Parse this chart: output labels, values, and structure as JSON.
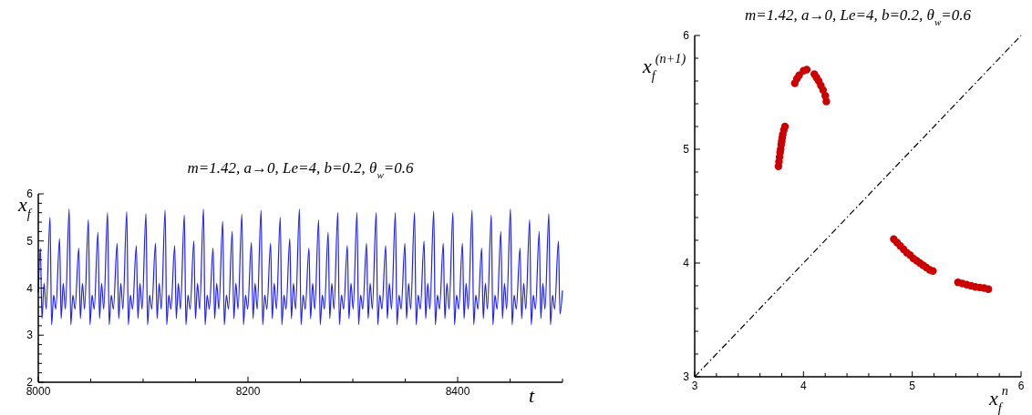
{
  "chart_data": [
    {
      "type": "line",
      "title": "m=1.42, a→0, Le=4, b=0.2, θ$_{w}$=0.6",
      "xlabel": "t",
      "ylabel": "x$_{f}$",
      "xlim": [
        8000,
        8500
      ],
      "ylim": [
        2,
        6
      ],
      "xticks": [
        8000,
        {
          "value": 8050,
          "label": null
        },
        {
          "value": 8100,
          "label": null
        },
        {
          "value": 8150,
          "label": null
        },
        8200,
        {
          "value": 8250,
          "label": null
        },
        {
          "value": 8300,
          "label": null
        },
        {
          "value": 8350,
          "label": null
        },
        8400,
        {
          "value": 8450,
          "label": null
        },
        {
          "value": 8500,
          "label": null
        }
      ],
      "yticks": [
        2,
        {
          "value": 2.2,
          "label": null
        },
        {
          "value": 2.4,
          "label": null
        },
        {
          "value": 2.6,
          "label": null
        },
        {
          "value": 2.8,
          "label": null
        },
        3,
        {
          "value": 3.2,
          "label": null
        },
        {
          "value": 3.4,
          "label": null
        },
        {
          "value": 3.6,
          "label": null
        },
        {
          "value": 3.8,
          "label": null
        },
        4,
        {
          "value": 4.2,
          "label": null
        },
        {
          "value": 4.4,
          "label": null
        },
        {
          "value": 4.6,
          "label": null
        },
        {
          "value": 4.8,
          "label": null
        },
        5,
        {
          "value": 5.2,
          "label": null
        },
        {
          "value": 5.4,
          "label": null
        },
        {
          "value": 5.6,
          "label": null
        },
        {
          "value": 5.8,
          "label": null
        },
        6
      ],
      "series": [
        {
          "color": "#1f1fff",
          "x": [
            8000,
            8002.0,
            8003.5,
            8005.5,
            8007.5,
            8011.2,
            8012.7,
            8014.7,
            8016.7,
            8020.3,
            8021.8,
            8023.8,
            8025.8,
            8029.5,
            8031.0,
            8033.0,
            8035.0,
            8038.6,
            8040.1,
            8042.1,
            8044.1,
            8047.8,
            8049.3,
            8051.3,
            8053.3,
            8056.9,
            8058.4,
            8060.4,
            8062.4,
            8066.1,
            8067.6,
            8069.6,
            8071.6,
            8075.2,
            8076.7,
            8078.7,
            8080.7,
            8084.4,
            8085.9,
            8087.9,
            8089.9,
            8093.5,
            8095.0,
            8097.0,
            8099.0,
            8102.7,
            8104.2,
            8106.2,
            8108.2,
            8111.8,
            8113.3,
            8115.3,
            8117.3,
            8121.0,
            8122.5,
            8124.5,
            8126.5,
            8130.1,
            8131.6,
            8133.6,
            8135.6,
            8139.3,
            8140.8,
            8142.8,
            8144.8,
            8148.4,
            8149.9,
            8151.9,
            8153.9,
            8157.6,
            8159.1,
            8161.1,
            8163.1,
            8166.7,
            8168.2,
            8170.2,
            8172.2,
            8175.9,
            8177.4,
            8179.4,
            8181.4,
            8185.0,
            8186.5,
            8188.5,
            8190.5,
            8194.2,
            8195.7,
            8197.7,
            8199.7,
            8203.3,
            8204.8,
            8206.8,
            8208.8,
            8212.5,
            8214.0,
            8216.0,
            8218.0,
            8221.6,
            8223.1,
            8225.1,
            8227.1,
            8230.8,
            8232.3,
            8234.3,
            8236.3,
            8239.9,
            8241.4,
            8243.4,
            8245.4,
            8249.1,
            8250.6,
            8252.6,
            8254.6,
            8258.2,
            8259.7,
            8261.7,
            8263.7,
            8267.4,
            8268.9,
            8270.9,
            8272.9,
            8276.5,
            8278.0,
            8280.0,
            8282.0,
            8285.7,
            8287.2,
            8289.2,
            8291.2,
            8294.8,
            8296.3,
            8298.3,
            8300.3,
            8304.0,
            8305.5,
            8307.5,
            8309.5,
            8313.1,
            8314.6,
            8316.6,
            8318.6,
            8322.3,
            8323.8,
            8325.8,
            8327.8,
            8331.4,
            8332.9,
            8334.9,
            8336.9,
            8340.6,
            8342.1,
            8344.1,
            8346.1,
            8349.7,
            8351.2,
            8353.2,
            8355.2,
            8358.9,
            8360.4,
            8362.4,
            8364.4,
            8368.0,
            8369.5,
            8371.5,
            8373.5,
            8377.2,
            8378.7,
            8380.7,
            8382.7,
            8386.3,
            8387.8,
            8389.8,
            8391.8,
            8395.5,
            8397.0,
            8399.0,
            8401.0,
            8404.6,
            8406.1,
            8408.1,
            8410.1,
            8413.8,
            8415.3,
            8417.3,
            8419.3,
            8422.9,
            8424.4,
            8426.4,
            8428.4,
            8432.1,
            8433.6,
            8435.6,
            8437.6,
            8441.2,
            8442.7,
            8444.7,
            8446.7,
            8450.4,
            8451.9,
            8453.9,
            8455.9,
            8459.5,
            8461.0,
            8463.0,
            8465.0,
            8468.7,
            8470.2,
            8472.2,
            8474.2,
            8477.8,
            8479.3,
            8481.3,
            8483.3,
            8487.0,
            8488.5,
            8490.5,
            8492.5,
            8496.1,
            8497.6,
            8500
          ],
          "values": [
            3.9,
            4.85,
            3.35,
            4.1,
            3.55,
            5.5,
            3.22,
            3.85,
            3.55,
            5.05,
            3.35,
            4.1,
            3.55,
            5.68,
            3.22,
            3.85,
            3.55,
            4.85,
            3.35,
            4.1,
            3.55,
            5.45,
            3.22,
            3.85,
            3.55,
            5.18,
            3.35,
            4.1,
            3.55,
            5.6,
            3.22,
            3.85,
            3.55,
            4.95,
            3.35,
            4.1,
            3.55,
            5.62,
            3.22,
            3.85,
            3.55,
            4.9,
            3.35,
            4.1,
            3.55,
            5.58,
            3.22,
            3.85,
            3.55,
            4.95,
            3.35,
            4.1,
            3.55,
            5.65,
            3.22,
            3.85,
            3.55,
            4.9,
            3.35,
            4.1,
            3.55,
            5.55,
            3.22,
            3.85,
            3.55,
            5.0,
            3.35,
            4.1,
            3.55,
            5.68,
            3.22,
            3.85,
            3.55,
            4.85,
            3.35,
            4.1,
            3.55,
            5.42,
            3.22,
            3.85,
            3.55,
            5.2,
            3.35,
            4.1,
            3.55,
            5.57,
            3.22,
            3.85,
            3.55,
            4.97,
            3.35,
            4.1,
            3.55,
            5.65,
            3.22,
            3.85,
            3.55,
            4.95,
            3.35,
            4.1,
            3.55,
            5.5,
            3.22,
            3.85,
            3.55,
            5.05,
            3.35,
            4.1,
            3.55,
            5.68,
            3.22,
            3.85,
            3.55,
            4.85,
            3.35,
            4.1,
            3.55,
            5.45,
            3.22,
            3.85,
            3.55,
            5.18,
            3.35,
            4.1,
            3.55,
            5.6,
            3.22,
            3.85,
            3.55,
            4.9,
            3.35,
            4.1,
            3.55,
            5.6,
            3.22,
            3.85,
            3.55,
            4.95,
            3.35,
            4.1,
            3.55,
            5.6,
            3.22,
            3.85,
            3.55,
            4.9,
            3.35,
            4.1,
            3.55,
            5.6,
            3.22,
            3.85,
            3.55,
            4.95,
            3.35,
            4.1,
            3.55,
            5.6,
            3.22,
            3.85,
            3.55,
            5.0,
            3.35,
            4.1,
            3.55,
            5.63,
            3.22,
            3.85,
            3.55,
            4.95,
            3.35,
            4.1,
            3.55,
            5.6,
            3.22,
            3.85,
            3.55,
            4.95,
            3.35,
            4.1,
            3.55,
            5.65,
            3.22,
            3.85,
            3.55,
            4.85,
            3.35,
            4.1,
            3.55,
            5.55,
            3.22,
            3.85,
            3.55,
            5.2,
            3.35,
            4.1,
            3.55,
            5.68,
            3.22,
            3.85,
            3.55,
            4.85,
            3.35,
            4.1,
            3.55,
            5.45,
            3.22,
            3.85,
            3.55,
            5.2,
            3.35,
            4.1,
            3.55,
            5.58,
            3.22,
            3.85,
            3.55,
            5.0,
            3.45,
            3.95
          ]
        }
      ]
    },
    {
      "type": "scatter",
      "title": "m=1.42, a→0, Le=4, b=0.2, θ$_{w}$=0.6",
      "xlabel": "x$_{f}$$^{n}$",
      "ylabel": "x$_{f}$$^{(n+1)}$",
      "xlim": [
        3,
        6
      ],
      "ylim": [
        3,
        6
      ],
      "xticks": [
        3,
        {
          "value": 3.2,
          "label": null
        },
        {
          "value": 3.4,
          "label": null
        },
        {
          "value": 3.6,
          "label": null
        },
        {
          "value": 3.8,
          "label": null
        },
        4,
        {
          "value": 4.2,
          "label": null
        },
        {
          "value": 4.4,
          "label": null
        },
        {
          "value": 4.6,
          "label": null
        },
        {
          "value": 4.8,
          "label": null
        },
        5,
        {
          "value": 5.2,
          "label": null
        },
        {
          "value": 5.4,
          "label": null
        },
        {
          "value": 5.6,
          "label": null
        },
        {
          "value": 5.8,
          "label": null
        },
        6
      ],
      "yticks": [
        3,
        {
          "value": 3.2,
          "label": null
        },
        {
          "value": 3.4,
          "label": null
        },
        {
          "value": 3.6,
          "label": null
        },
        {
          "value": 3.8,
          "label": null
        },
        4,
        {
          "value": 4.2,
          "label": null
        },
        {
          "value": 4.4,
          "label": null
        },
        {
          "value": 4.6,
          "label": null
        },
        {
          "value": 4.8,
          "label": null
        },
        5,
        {
          "value": 5.2,
          "label": null
        },
        {
          "value": 5.4,
          "label": null
        },
        {
          "value": 5.6,
          "label": null
        },
        {
          "value": 5.8,
          "label": null
        },
        6
      ],
      "series": [
        {
          "type": "line",
          "color": "#000000",
          "line_style": "dashdot",
          "x": [
            3,
            6
          ],
          "values": [
            3,
            6
          ]
        },
        {
          "marker": "circle",
          "color": "#cc0000",
          "x": [
            3.77,
            3.775,
            3.78,
            3.785,
            3.79,
            3.795,
            3.8,
            3.805,
            3.81,
            3.82,
            3.83,
            3.92,
            3.94,
            3.96,
            4.0,
            4.03,
            4.1,
            4.12,
            4.14,
            4.16,
            4.18,
            4.2,
            4.21,
            4.83,
            4.86,
            4.89,
            4.92,
            4.95,
            4.98,
            5.01,
            5.04,
            5.07,
            5.1,
            5.13,
            5.16,
            5.19,
            5.42,
            5.46,
            5.5,
            5.54,
            5.58,
            5.62,
            5.66,
            5.7
          ],
          "values": [
            4.85,
            4.89,
            4.93,
            4.97,
            5.0,
            5.04,
            5.07,
            5.1,
            5.13,
            5.17,
            5.2,
            5.58,
            5.62,
            5.65,
            5.69,
            5.7,
            5.66,
            5.63,
            5.6,
            5.56,
            5.52,
            5.47,
            5.42,
            4.21,
            4.18,
            4.15,
            4.12,
            4.09,
            4.07,
            4.04,
            4.02,
            4.0,
            3.98,
            3.96,
            3.94,
            3.93,
            3.83,
            3.82,
            3.81,
            3.8,
            3.79,
            3.785,
            3.78,
            3.77
          ]
        }
      ]
    }
  ]
}
